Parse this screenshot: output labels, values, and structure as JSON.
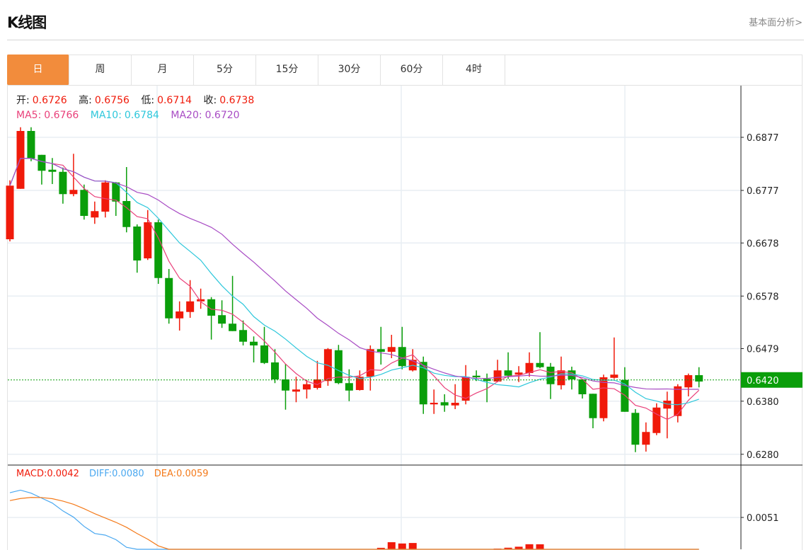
{
  "header": {
    "title": "K线图",
    "link": "基本面分析>"
  },
  "tabs": [
    {
      "label": "日",
      "active": true
    },
    {
      "label": "周"
    },
    {
      "label": "月"
    },
    {
      "label": "5分"
    },
    {
      "label": "15分"
    },
    {
      "label": "30分"
    },
    {
      "label": "60分"
    },
    {
      "label": "4时"
    }
  ],
  "info": {
    "open_label": "开:",
    "open": "0.6726",
    "high_label": "高:",
    "high": "0.6756",
    "low_label": "低:",
    "low": "0.6714",
    "close_label": "收:",
    "close": "0.6738",
    "ma5_label": "MA5:",
    "ma5": "0.6766",
    "ma10_label": "MA10:",
    "ma10": "0.6784",
    "ma20_label": "MA20:",
    "ma20": "0.6720"
  },
  "macd_info": {
    "macd": "MACD:0.0042",
    "diff": "DIFF:0.0080",
    "dea": "DEA:0.0059"
  },
  "colors": {
    "up": "#f01a0a",
    "down": "#0a9e0a",
    "ma5": "#e9407a",
    "ma10": "#2dc7db",
    "ma20": "#a84cc4",
    "diff": "#4aa8f0",
    "dea": "#f47a1a",
    "accent": "#f28c3c"
  },
  "chart_data": {
    "type": "candlestick",
    "y_ticks": [
      "0.6877",
      "0.6777",
      "0.6678",
      "0.6578",
      "0.6479",
      "0.6380",
      "0.6280"
    ],
    "current_price": "0.6420",
    "macd_ticks": [
      "0.0051"
    ],
    "ohlc": [
      [
        0.6685,
        0.6796,
        0.6681,
        0.6786
      ],
      [
        0.678,
        0.6896,
        0.678,
        0.6889
      ],
      [
        0.6889,
        0.6896,
        0.6832,
        0.6837
      ],
      [
        0.6844,
        0.6844,
        0.6788,
        0.6814
      ],
      [
        0.6816,
        0.6838,
        0.6789,
        0.6812
      ],
      [
        0.6812,
        0.682,
        0.6752,
        0.677
      ],
      [
        0.677,
        0.6846,
        0.6766,
        0.6778
      ],
      [
        0.6778,
        0.6788,
        0.6722,
        0.6729
      ],
      [
        0.6726,
        0.6756,
        0.6714,
        0.6738
      ],
      [
        0.6737,
        0.6796,
        0.6726,
        0.6792
      ],
      [
        0.6792,
        0.6793,
        0.6729,
        0.6756
      ],
      [
        0.6757,
        0.6821,
        0.6698,
        0.6708
      ],
      [
        0.6709,
        0.6713,
        0.6622,
        0.6645
      ],
      [
        0.6649,
        0.674,
        0.6646,
        0.6717
      ],
      [
        0.6717,
        0.6722,
        0.6601,
        0.6612
      ],
      [
        0.6612,
        0.6629,
        0.6526,
        0.6536
      ],
      [
        0.6536,
        0.6568,
        0.6513,
        0.6549
      ],
      [
        0.6548,
        0.6608,
        0.6537,
        0.6568
      ],
      [
        0.6568,
        0.6592,
        0.6554,
        0.6572
      ],
      [
        0.6572,
        0.6576,
        0.6496,
        0.6541
      ],
      [
        0.6542,
        0.657,
        0.6518,
        0.6526
      ],
      [
        0.6526,
        0.6616,
        0.6512,
        0.6512
      ],
      [
        0.6514,
        0.6532,
        0.6485,
        0.6492
      ],
      [
        0.6492,
        0.6502,
        0.6453,
        0.6485
      ],
      [
        0.6485,
        0.652,
        0.645,
        0.6452
      ],
      [
        0.6453,
        0.6478,
        0.6414,
        0.6421
      ],
      [
        0.6421,
        0.645,
        0.6364,
        0.64
      ],
      [
        0.6398,
        0.6426,
        0.6378,
        0.6402
      ],
      [
        0.6402,
        0.642,
        0.6385,
        0.6412
      ],
      [
        0.6405,
        0.6456,
        0.6402,
        0.6421
      ],
      [
        0.6418,
        0.648,
        0.6409,
        0.6478
      ],
      [
        0.6476,
        0.6486,
        0.6412,
        0.6414
      ],
      [
        0.6414,
        0.644,
        0.638,
        0.64
      ],
      [
        0.6401,
        0.6438,
        0.64,
        0.6426
      ],
      [
        0.6426,
        0.6485,
        0.64,
        0.6478
      ],
      [
        0.6478,
        0.652,
        0.6449,
        0.6473
      ],
      [
        0.6473,
        0.6505,
        0.6461,
        0.6482
      ],
      [
        0.6482,
        0.652,
        0.644,
        0.6446
      ],
      [
        0.6438,
        0.6478,
        0.6436,
        0.6458
      ],
      [
        0.6454,
        0.6464,
        0.6356,
        0.6374
      ],
      [
        0.6374,
        0.6402,
        0.6356,
        0.6377
      ],
      [
        0.6378,
        0.6393,
        0.636,
        0.6372
      ],
      [
        0.6372,
        0.6412,
        0.6365,
        0.6377
      ],
      [
        0.6381,
        0.6448,
        0.6374,
        0.6426
      ],
      [
        0.6428,
        0.6438,
        0.6418,
        0.6425
      ],
      [
        0.6422,
        0.6432,
        0.6378,
        0.6418
      ],
      [
        0.6417,
        0.6458,
        0.6416,
        0.6438
      ],
      [
        0.6438,
        0.6472,
        0.6422,
        0.6428
      ],
      [
        0.643,
        0.6446,
        0.6416,
        0.6434
      ],
      [
        0.6433,
        0.6472,
        0.6426,
        0.6452
      ],
      [
        0.6452,
        0.651,
        0.6442,
        0.6444
      ],
      [
        0.6445,
        0.6452,
        0.6384,
        0.6412
      ],
      [
        0.641,
        0.6464,
        0.6402,
        0.6438
      ],
      [
        0.6438,
        0.6445,
        0.6402,
        0.6421
      ],
      [
        0.6421,
        0.6421,
        0.6385,
        0.6393
      ],
      [
        0.6394,
        0.6394,
        0.6329,
        0.6348
      ],
      [
        0.6348,
        0.643,
        0.6342,
        0.6425
      ],
      [
        0.6424,
        0.65,
        0.6422,
        0.643
      ],
      [
        0.642,
        0.6444,
        0.636,
        0.636
      ],
      [
        0.6358,
        0.6365,
        0.6284,
        0.6298
      ],
      [
        0.6298,
        0.634,
        0.6285,
        0.6322
      ],
      [
        0.632,
        0.6376,
        0.6316,
        0.6368
      ],
      [
        0.6366,
        0.6398,
        0.631,
        0.6381
      ],
      [
        0.6352,
        0.6412,
        0.634,
        0.6408
      ],
      [
        0.6406,
        0.6432,
        0.6389,
        0.6429
      ],
      [
        0.6429,
        0.6444,
        0.6406,
        0.6417
      ]
    ]
  }
}
